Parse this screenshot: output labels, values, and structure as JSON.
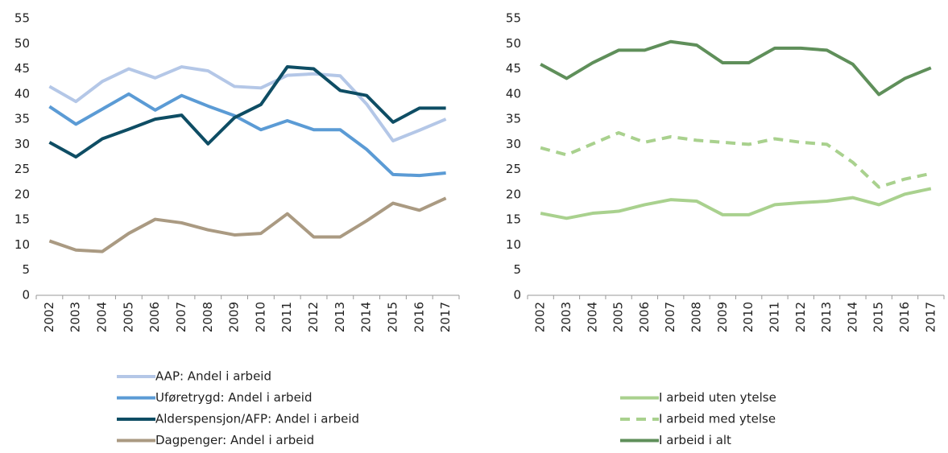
{
  "chart_data": [
    {
      "type": "line",
      "categories": [
        "2002",
        "2003",
        "2004",
        "2005",
        "2006",
        "2007",
        "2008",
        "2009",
        "2010",
        "2011",
        "2012",
        "2013",
        "2014",
        "2015",
        "2016",
        "2017"
      ],
      "ylim": [
        0,
        55
      ],
      "yticks": [
        0,
        5,
        10,
        15,
        20,
        25,
        30,
        35,
        40,
        45,
        50,
        55
      ],
      "legend": "bottom",
      "series": [
        {
          "name": "AAP: Andel i arbeid",
          "color": "#b4c7e7",
          "style": "solid",
          "values": [
            41.5,
            38.5,
            42.5,
            45,
            43.2,
            45.4,
            44.6,
            41.5,
            41.2,
            43.7,
            44,
            43.6,
            38,
            30.7,
            32.8,
            35
          ]
        },
        {
          "name": "Uføretrygd: Andel i arbeid",
          "color": "#5b9bd5",
          "style": "solid",
          "values": [
            37.5,
            34,
            37,
            40,
            36.8,
            39.7,
            37.6,
            35.7,
            32.9,
            34.7,
            32.9,
            32.9,
            29,
            24,
            23.8,
            24.3
          ]
        },
        {
          "name": "Alderspensjon/AFP: Andel i arbeid",
          "color": "#0e4d64",
          "style": "solid",
          "values": [
            30.4,
            27.5,
            31.1,
            33,
            35,
            35.8,
            30.1,
            35.3,
            37.9,
            45.4,
            45,
            40.7,
            39.7,
            34.4,
            37.2,
            37.2
          ]
        },
        {
          "name": "Dagpenger: Andel i arbeid",
          "color": "#aa9a82",
          "style": "solid",
          "values": [
            10.8,
            9,
            8.7,
            12.3,
            15.1,
            14.4,
            13,
            12,
            12.3,
            16.2,
            11.6,
            11.6,
            14.8,
            18.3,
            16.9,
            19.3
          ]
        }
      ]
    },
    {
      "type": "line",
      "categories": [
        "2002",
        "2003",
        "2004",
        "2005",
        "2006",
        "2007",
        "2008",
        "2009",
        "2010",
        "2011",
        "2012",
        "2013",
        "2014",
        "2015",
        "2016",
        "2017"
      ],
      "ylim": [
        0,
        55
      ],
      "yticks": [
        0,
        5,
        10,
        15,
        20,
        25,
        30,
        35,
        40,
        45,
        50,
        55
      ],
      "legend": "bottom",
      "series": [
        {
          "name": "I arbeid uten ytelse",
          "color": "#a9d18e",
          "style": "solid",
          "values": [
            16.3,
            15.3,
            16.3,
            16.7,
            18,
            19,
            18.7,
            16,
            16,
            18,
            18.4,
            18.7,
            19.4,
            18,
            20.1,
            21.2
          ]
        },
        {
          "name": "I arbeid med ytelse",
          "color": "#a9d18e",
          "style": "dashed",
          "values": [
            29.3,
            27.9,
            30.1,
            32.3,
            30.4,
            31.5,
            30.8,
            30.4,
            30,
            31.1,
            30.4,
            30,
            26.4,
            21.5,
            23.1,
            24.2
          ]
        },
        {
          "name": "I arbeid i alt",
          "color": "#5f8f5a",
          "style": "solid",
          "values": [
            45.9,
            43.1,
            46.2,
            48.7,
            48.7,
            50.4,
            49.7,
            46.2,
            46.2,
            49.1,
            49.1,
            48.7,
            45.9,
            39.9,
            43.1,
            45.2
          ]
        }
      ]
    }
  ]
}
